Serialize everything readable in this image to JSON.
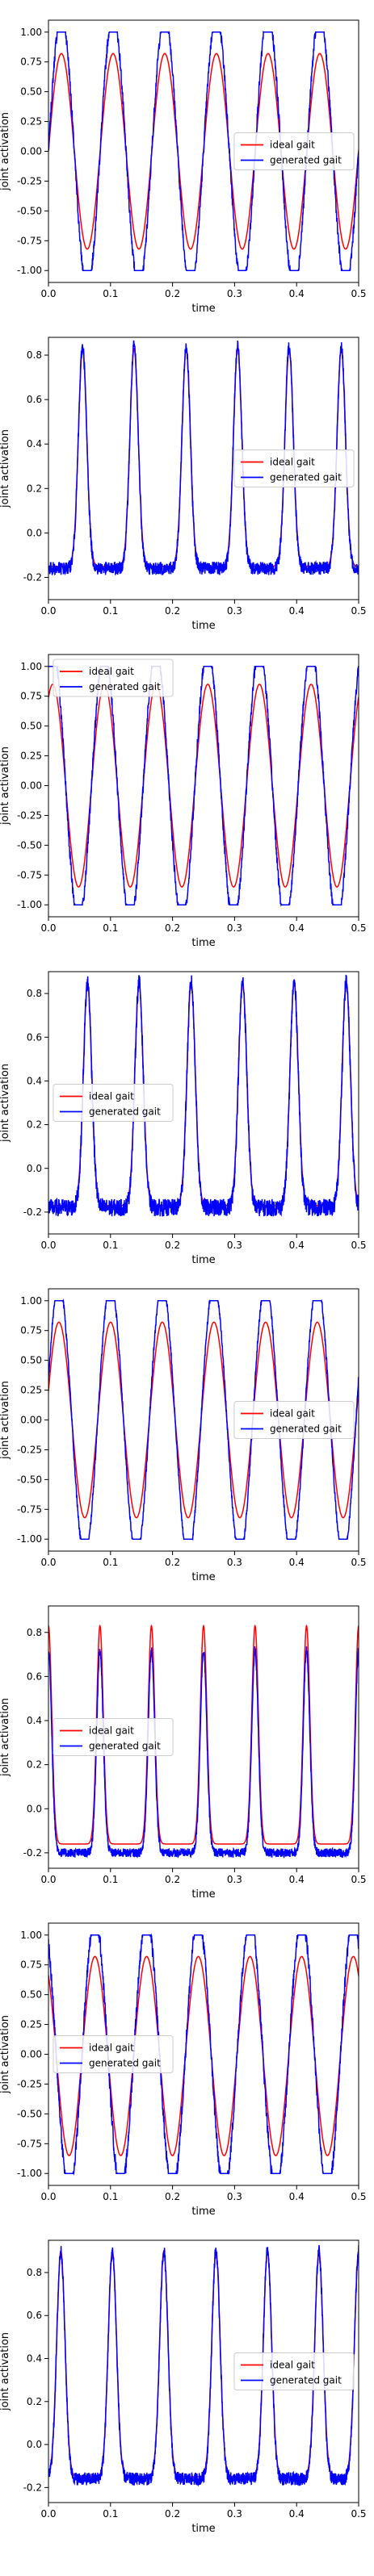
{
  "colors": {
    "ideal": "#ff0000",
    "generated": "#0000ff",
    "axes": "#000000"
  },
  "chart_data": [
    {
      "type": "line",
      "shape": "sine",
      "xlabel": "time",
      "ylabel": "joint activation",
      "xlim": [
        0.0,
        0.5
      ],
      "ylim": [
        -1.1,
        1.1
      ],
      "xticks": [
        "0.0",
        "0.1",
        "0.2",
        "0.3",
        "0.4",
        "0.5"
      ],
      "yticks": [
        "-1.00",
        "-0.75",
        "-0.50",
        "-0.25",
        "0.00",
        "0.25",
        "0.50",
        "0.75",
        "1.00"
      ],
      "ytick_values": [
        -1.0,
        -0.75,
        -0.5,
        -0.25,
        0.0,
        0.25,
        0.5,
        0.75,
        1.0
      ],
      "legend_loc": "center-right",
      "period": 0.0833,
      "phase": 0.0,
      "ideal": {
        "min": -0.82,
        "max": 0.82
      },
      "generated": {
        "min": -1.0,
        "max": 1.0,
        "noise": 0.05
      },
      "series": [
        {
          "name": "ideal gait"
        },
        {
          "name": "generated gait"
        }
      ]
    },
    {
      "type": "line",
      "shape": "pulse",
      "xlabel": "time",
      "ylabel": "joint activation",
      "xlim": [
        0.0,
        0.5
      ],
      "ylim": [
        -0.3,
        0.88
      ],
      "xticks": [
        "0.0",
        "0.1",
        "0.2",
        "0.3",
        "0.4",
        "0.5"
      ],
      "yticks": [
        "-0.2",
        "0.0",
        "0.2",
        "0.4",
        "0.6",
        "0.8"
      ],
      "ytick_values": [
        -0.2,
        0.0,
        0.2,
        0.4,
        0.6,
        0.8
      ],
      "legend_loc": "center-right",
      "period": 0.0833,
      "peaks": [
        0.055,
        0.138,
        0.222,
        0.305,
        0.388,
        0.472
      ],
      "width": 0.0095,
      "ideal": {
        "base": -0.15,
        "peak": 0.83
      },
      "generated": {
        "base": -0.16,
        "peak": 0.84,
        "noise": 0.03
      },
      "series": [
        {
          "name": "ideal gait"
        },
        {
          "name": "generated gait"
        }
      ]
    },
    {
      "type": "line",
      "shape": "sine",
      "xlabel": "time",
      "ylabel": "joint activation",
      "xlim": [
        0.0,
        0.5
      ],
      "ylim": [
        -1.1,
        1.1
      ],
      "xticks": [
        "0.0",
        "0.1",
        "0.2",
        "0.3",
        "0.4",
        "0.5"
      ],
      "yticks": [
        "-1.00",
        "-0.75",
        "-0.50",
        "-0.25",
        "0.00",
        "0.25",
        "0.50",
        "0.75",
        "1.00"
      ],
      "ytick_values": [
        -1.0,
        -0.75,
        -0.5,
        -0.25,
        0.0,
        0.25,
        0.5,
        0.75,
        1.0
      ],
      "legend_loc": "upper-left",
      "period": 0.0833,
      "phase": 1.05,
      "ideal": {
        "min": -0.85,
        "max": 0.85
      },
      "generated": {
        "min": -1.0,
        "max": 1.0,
        "noise": 0.05
      },
      "series": [
        {
          "name": "ideal gait"
        },
        {
          "name": "generated gait"
        }
      ]
    },
    {
      "type": "line",
      "shape": "pulse",
      "xlabel": "time",
      "ylabel": "joint activation",
      "xlim": [
        0.0,
        0.5
      ],
      "ylim": [
        -0.3,
        0.9
      ],
      "xticks": [
        "0.0",
        "0.1",
        "0.2",
        "0.3",
        "0.4",
        "0.5"
      ],
      "yticks": [
        "-0.2",
        "0.0",
        "0.2",
        "0.4",
        "0.6",
        "0.8"
      ],
      "ytick_values": [
        -0.2,
        0.0,
        0.2,
        0.4,
        0.6,
        0.8
      ],
      "legend_loc": "center-left",
      "period": 0.0833,
      "peaks": [
        0.063,
        0.146,
        0.23,
        0.313,
        0.396,
        0.48
      ],
      "width": 0.0095,
      "ideal": {
        "base": -0.17,
        "peak": 0.85
      },
      "generated": {
        "base": -0.18,
        "peak": 0.85,
        "noise": 0.04
      },
      "series": [
        {
          "name": "ideal gait"
        },
        {
          "name": "generated gait"
        }
      ]
    },
    {
      "type": "line",
      "shape": "sine",
      "xlabel": "time",
      "ylabel": "joint activation",
      "xlim": [
        0.0,
        0.5
      ],
      "ylim": [
        -1.1,
        1.1
      ],
      "xticks": [
        "0.0",
        "0.1",
        "0.2",
        "0.3",
        "0.4",
        "0.5"
      ],
      "yticks": [
        "-1.00",
        "-0.75",
        "-0.50",
        "-0.25",
        "0.00",
        "0.25",
        "0.50",
        "0.75",
        "1.00"
      ],
      "ytick_values": [
        -1.0,
        -0.75,
        -0.5,
        -0.25,
        0.0,
        0.25,
        0.5,
        0.75,
        1.0
      ],
      "legend_loc": "center-right",
      "period": 0.0833,
      "phase": 0.3,
      "ideal": {
        "min": -0.82,
        "max": 0.82
      },
      "generated": {
        "min": -1.0,
        "max": 1.0,
        "noise": 0.03
      },
      "series": [
        {
          "name": "ideal gait"
        },
        {
          "name": "generated gait"
        }
      ]
    },
    {
      "type": "line",
      "shape": "pulse",
      "xlabel": "time",
      "ylabel": "joint activation",
      "xlim": [
        0.0,
        0.5
      ],
      "ylim": [
        -0.27,
        0.92
      ],
      "xticks": [
        "0.0",
        "0.1",
        "0.2",
        "0.3",
        "0.4",
        "0.5"
      ],
      "yticks": [
        "-0.2",
        "0.0",
        "0.2",
        "0.4",
        "0.6",
        "0.8"
      ],
      "ytick_values": [
        -0.2,
        0.0,
        0.2,
        0.4,
        0.6,
        0.8
      ],
      "legend_loc": "center-left",
      "period": 0.0833,
      "peaks": [
        0.0,
        0.083,
        0.166,
        0.25,
        0.333,
        0.416,
        0.5
      ],
      "width": 0.0075,
      "ideal": {
        "base": -0.16,
        "peak": 0.83
      },
      "generated": {
        "base": -0.2,
        "peak": 0.72,
        "noise": 0.02
      },
      "series": [
        {
          "name": "ideal gait"
        },
        {
          "name": "generated gait"
        }
      ]
    },
    {
      "type": "line",
      "shape": "sine",
      "xlabel": "time",
      "ylabel": "joint activation",
      "xlim": [
        0.0,
        0.5
      ],
      "ylim": [
        -1.1,
        1.1
      ],
      "xticks": [
        "0.0",
        "0.1",
        "0.2",
        "0.3",
        "0.4",
        "0.5"
      ],
      "yticks": [
        "-1.00",
        "-0.75",
        "-0.50",
        "-0.25",
        "0.00",
        "0.25",
        "0.50",
        "0.75",
        "1.00"
      ],
      "ytick_values": [
        -1.0,
        -0.75,
        -0.5,
        -0.25,
        0.0,
        0.25,
        0.5,
        0.75,
        1.0
      ],
      "legend_loc": "center-left",
      "period": 0.0833,
      "phase": 2.2,
      "ideal": {
        "min": -0.85,
        "max": 0.82
      },
      "generated": {
        "min": -1.0,
        "max": 1.0,
        "noise": 0.06
      },
      "series": [
        {
          "name": "ideal gait"
        },
        {
          "name": "generated gait"
        }
      ]
    },
    {
      "type": "line",
      "shape": "pulse",
      "xlabel": "time",
      "ylabel": "joint activation",
      "xlim": [
        0.0,
        0.5
      ],
      "ylim": [
        -0.27,
        0.95
      ],
      "xticks": [
        "0.0",
        "0.1",
        "0.2",
        "0.3",
        "0.4",
        "0.5"
      ],
      "yticks": [
        "-0.2",
        "0.0",
        "0.2",
        "0.4",
        "0.6",
        "0.8"
      ],
      "ytick_values": [
        -0.2,
        0.0,
        0.2,
        0.4,
        0.6,
        0.8
      ],
      "legend_loc": "center-right",
      "period": 0.0833,
      "peaks": [
        0.02,
        0.103,
        0.186,
        0.27,
        0.353,
        0.436,
        0.5
      ],
      "width": 0.0095,
      "ideal": {
        "base": -0.15,
        "peak": 0.9
      },
      "generated": {
        "base": -0.16,
        "peak": 0.9,
        "noise": 0.03
      },
      "series": [
        {
          "name": "ideal gait"
        },
        {
          "name": "generated gait"
        }
      ]
    }
  ]
}
